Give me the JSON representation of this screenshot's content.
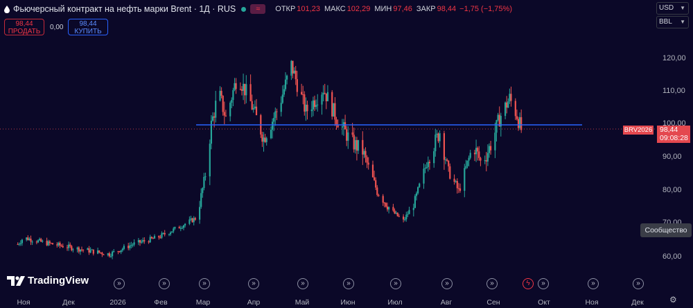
{
  "header": {
    "title": "Фьючерсный контракт на нефть марки Brent · 1Д · RUS",
    "wave_icon": "≈",
    "ohlc": [
      {
        "label": "ОТКР",
        "value": "101,23"
      },
      {
        "label": "МАКС",
        "value": "102,29"
      },
      {
        "label": "МИН",
        "value": "97,46"
      },
      {
        "label": "ЗАКР",
        "value": "98,44"
      },
      {
        "label": "",
        "value": "−1,75 (−1,75%)"
      }
    ]
  },
  "trade": {
    "sell_price": "98,44",
    "sell_label": "ПРОДАТЬ",
    "spread": "0,00",
    "buy_price": "98,44",
    "buy_label": "КУПИТЬ"
  },
  "currency": "USD",
  "unit": "BBL",
  "price_axis": {
    "ticks": [
      "120,00",
      "110,00",
      "100,00",
      "90,00",
      "80,00",
      "70,00",
      "60,00"
    ]
  },
  "time_axis": {
    "labels": [
      "Ноя",
      "Дек",
      "2026",
      "Фев",
      "Мар",
      "Апр",
      "Май",
      "Июн",
      "Июл",
      "Авг",
      "Сен",
      "Окт",
      "Ноя",
      "Дек"
    ]
  },
  "last_price": {
    "symbol": "BRV2026",
    "price": "98,44",
    "countdown": "09:08:28"
  },
  "community_label": "Сообщество",
  "logo_text": "TradingView",
  "colors": {
    "up": "#26a69a",
    "down": "#ef5350",
    "line": "#2962ff",
    "background": "#0b0828",
    "price_tag": "#e4484f"
  },
  "icons": [
    "drop-icon",
    "wave-icon",
    "event-icon",
    "lightning-icon",
    "settings-icon",
    "chevron-down-icon"
  ],
  "chart_data": {
    "type": "candlestick",
    "title": "Фьючерсный контракт на нефть марки Brent · 1Д · RUS",
    "ylim": [
      54,
      130
    ],
    "horizontal_line": 100,
    "last_price": 98.44,
    "key_points": [
      {
        "date": "2025-10-28",
        "price": 64
      },
      {
        "date": "2025-11-01",
        "price": 66
      },
      {
        "date": "2025-11-15",
        "price": 64.5
      },
      {
        "date": "2025-12-10",
        "price": 62.5
      },
      {
        "date": "2025-12-30",
        "price": 61
      },
      {
        "date": "2026-01-15",
        "price": 64
      },
      {
        "date": "2026-02-01",
        "price": 66
      },
      {
        "date": "2026-02-15",
        "price": 69
      },
      {
        "date": "2026-02-28",
        "price": 72
      },
      {
        "date": "2026-03-06",
        "price": 85
      },
      {
        "date": "2026-03-10",
        "price": 100
      },
      {
        "date": "2026-03-15",
        "price": 110
      },
      {
        "date": "2026-03-20",
        "price": 102
      },
      {
        "date": "2026-03-28",
        "price": 115
      },
      {
        "date": "2026-04-05",
        "price": 108
      },
      {
        "date": "2026-04-15",
        "price": 96
      },
      {
        "date": "2026-04-25",
        "price": 105
      },
      {
        "date": "2026-05-04",
        "price": 118
      },
      {
        "date": "2026-05-14",
        "price": 104
      },
      {
        "date": "2026-05-26",
        "price": 111
      },
      {
        "date": "2026-06-04",
        "price": 102
      },
      {
        "date": "2026-06-14",
        "price": 95
      },
      {
        "date": "2026-06-22",
        "price": 92
      },
      {
        "date": "2026-07-02",
        "price": 80
      },
      {
        "date": "2026-07-12",
        "price": 74
      },
      {
        "date": "2026-07-20",
        "price": 71
      },
      {
        "date": "2026-07-28",
        "price": 77
      },
      {
        "date": "2026-08-06",
        "price": 90
      },
      {
        "date": "2026-08-14",
        "price": 98
      },
      {
        "date": "2026-08-20",
        "price": 86
      },
      {
        "date": "2026-08-27",
        "price": 80
      },
      {
        "date": "2026-09-06",
        "price": 94
      },
      {
        "date": "2026-09-12",
        "price": 88
      },
      {
        "date": "2026-09-19",
        "price": 95
      },
      {
        "date": "2026-09-24",
        "price": 102
      },
      {
        "date": "2026-10-01",
        "price": 108
      },
      {
        "date": "2026-10-06",
        "price": 103
      },
      {
        "date": "2026-10-09",
        "price": 98.44
      }
    ],
    "event_markers": [
      {
        "date": "2026-02-21",
        "type": "event"
      },
      {
        "date": "2026-03-22",
        "type": "event"
      },
      {
        "date": "2026-04-21",
        "type": "event"
      },
      {
        "date": "2026-05-21",
        "type": "event"
      },
      {
        "date": "2026-06-21",
        "type": "event"
      },
      {
        "date": "2026-07-21",
        "type": "event"
      },
      {
        "date": "2026-08-21",
        "type": "event"
      },
      {
        "date": "2026-09-21",
        "type": "event"
      },
      {
        "date": "2026-10-05",
        "type": "lightning"
      },
      {
        "date": "2026-10-17",
        "type": "event"
      },
      {
        "date": "2026-11-19",
        "type": "event"
      },
      {
        "date": "2026-12-19",
        "type": "event"
      }
    ]
  }
}
